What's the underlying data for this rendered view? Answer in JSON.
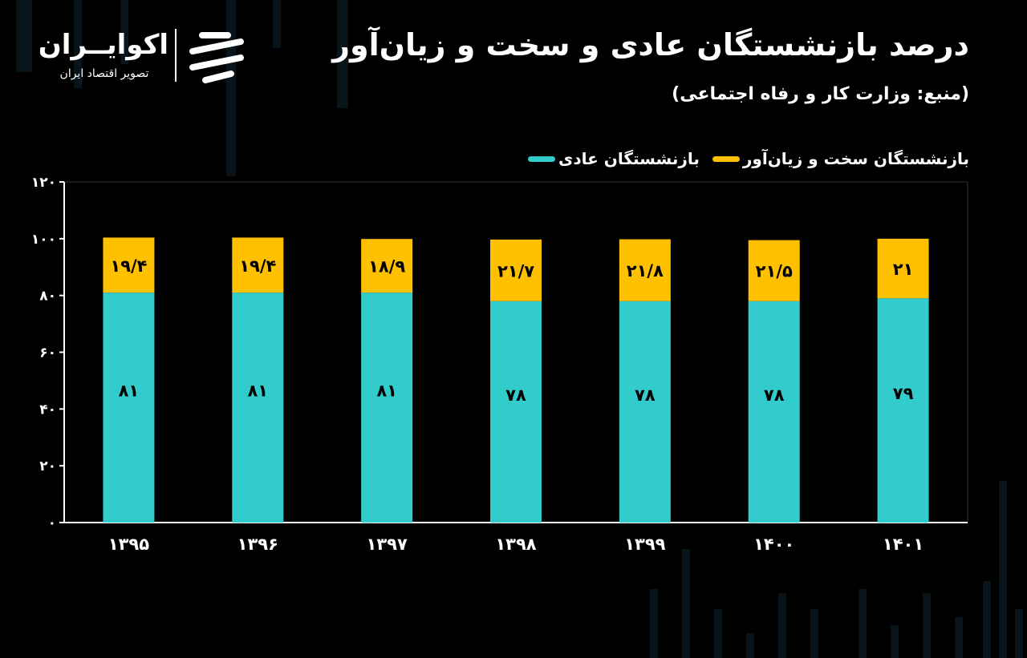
{
  "header": {
    "title": "درصد بازنشستگان عادی و سخت و زیان‌آور",
    "source": "(منبع: وزارت کار و رفاه اجتماعی)"
  },
  "logo": {
    "name": "اکوایــران",
    "tagline": "تصویر اقتصاد ایران"
  },
  "colors": {
    "normal": "#33CCCC",
    "hard": "#FFC000",
    "background": "#000000",
    "axis": "#ffffff"
  },
  "chart_data": {
    "type": "bar",
    "stacked": true,
    "categories": [
      "۱۳۹۵",
      "۱۳۹۶",
      "۱۳۹۷",
      "۱۳۹۸",
      "۱۳۹۹",
      "۱۴۰۰",
      "۱۴۰۱"
    ],
    "series": [
      {
        "name": "بازنشستگان عادی",
        "values": [
          81,
          81,
          81,
          78,
          78,
          78,
          79
        ],
        "labels": [
          "۸۱",
          "۸۱",
          "۸۱",
          "۷۸",
          "۷۸",
          "۷۸",
          "۷۹"
        ],
        "color": "#33CCCC"
      },
      {
        "name": "بازنشستگان سخت و زیان‌آور",
        "values": [
          19.4,
          19.4,
          18.9,
          21.7,
          21.8,
          21.5,
          21
        ],
        "labels": [
          "۱۹/۴",
          "۱۹/۴",
          "۱۸/۹",
          "۲۱/۷",
          "۲۱/۸",
          "۲۱/۵",
          "۲۱"
        ],
        "color": "#FFC000"
      }
    ],
    "y_ticks": [
      0,
      20,
      40,
      60,
      80,
      100,
      120
    ],
    "y_tick_labels": [
      "۰",
      "۲۰",
      "۴۰",
      "۶۰",
      "۸۰",
      "۱۰۰",
      "۱۲۰"
    ],
    "ylim": [
      0,
      120
    ],
    "grid": false,
    "legend_position": "top-right"
  }
}
